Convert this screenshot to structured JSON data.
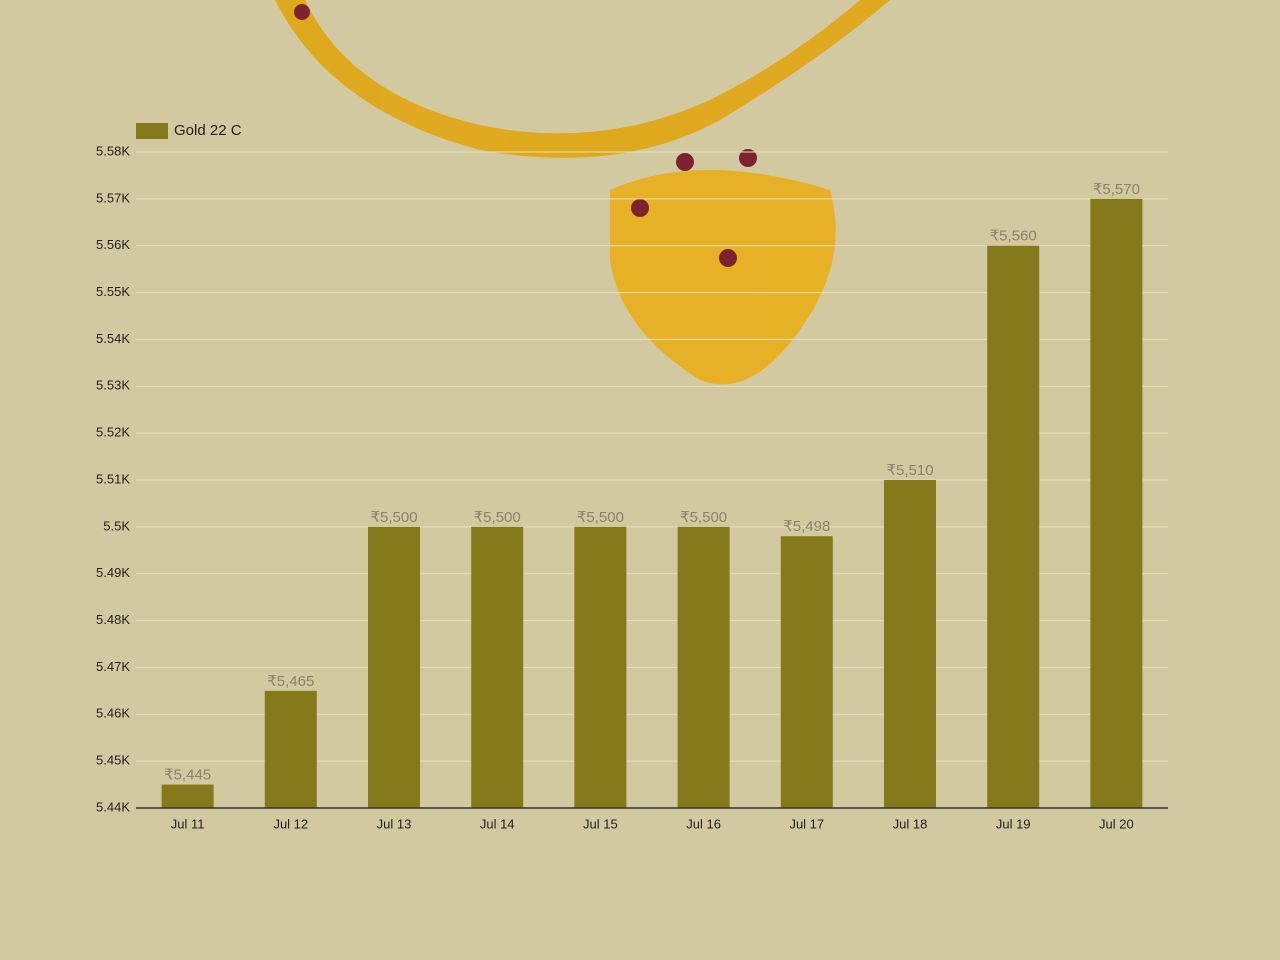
{
  "chart_data": {
    "type": "bar",
    "legend": "Gold 22 C",
    "color": "#84791b",
    "categories": [
      "Jul 11",
      "Jul 12",
      "Jul 13",
      "Jul 14",
      "Jul 15",
      "Jul 16",
      "Jul 17",
      "Jul 18",
      "Jul 19",
      "Jul 20"
    ],
    "values": [
      5445,
      5465,
      5500,
      5500,
      5500,
      5500,
      5498,
      5510,
      5560,
      5570
    ],
    "value_labels": [
      "₹5,445",
      "₹5,465",
      "₹5,500",
      "₹5,500",
      "₹5,500",
      "₹5,500",
      "₹5,498",
      "₹5,510",
      "₹5,560",
      "₹5,570"
    ],
    "ylim": [
      5440,
      5580
    ],
    "yticks": [
      {
        "value": 5440,
        "label": "5.44K"
      },
      {
        "value": 5450,
        "label": "5.45K"
      },
      {
        "value": 5460,
        "label": "5.46K"
      },
      {
        "value": 5470,
        "label": "5.47K"
      },
      {
        "value": 5480,
        "label": "5.48K"
      },
      {
        "value": 5490,
        "label": "5.49K"
      },
      {
        "value": 5500,
        "label": "5.5K"
      },
      {
        "value": 5510,
        "label": "5.51K"
      },
      {
        "value": 5520,
        "label": "5.52K"
      },
      {
        "value": 5530,
        "label": "5.53K"
      },
      {
        "value": 5540,
        "label": "5.54K"
      },
      {
        "value": 5550,
        "label": "5.55K"
      },
      {
        "value": 5560,
        "label": "5.56K"
      },
      {
        "value": 5570,
        "label": "5.57K"
      },
      {
        "value": 5580,
        "label": "5.58K"
      }
    ],
    "grid": true
  }
}
